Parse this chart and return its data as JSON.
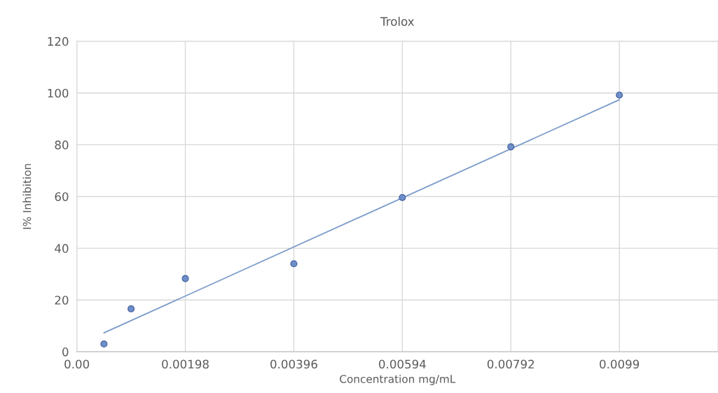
{
  "chart_data": {
    "type": "scatter",
    "title": "Trolox",
    "xlabel": "Concentration mg/mL",
    "ylabel": "I% Inhibition",
    "series": [
      {
        "marker": "circle",
        "color": "#6f8fc9",
        "x": [
          0.000495,
          0.00099,
          0.00198,
          0.00396,
          0.00594,
          0.00792,
          0.0099
        ],
        "values": [
          3.0,
          16.6,
          28.3,
          34.0,
          59.6,
          79.2,
          99.2
        ]
      },
      {
        "type": "line",
        "color": "#7a9acb",
        "x": [
          0.000495,
          0.0099
        ],
        "values": [
          7.3,
          97.4
        ]
      }
    ],
    "xlim": [
      0,
      0.0117
    ],
    "xticks": [
      {
        "value": 0,
        "label": "0.00"
      },
      0.00198,
      0.00396,
      0.00594,
      0.00792,
      0.0099
    ],
    "ylim": [
      0,
      120
    ],
    "yticks": [
      0,
      20,
      40,
      60,
      80,
      100,
      120
    ],
    "grid": true
  }
}
